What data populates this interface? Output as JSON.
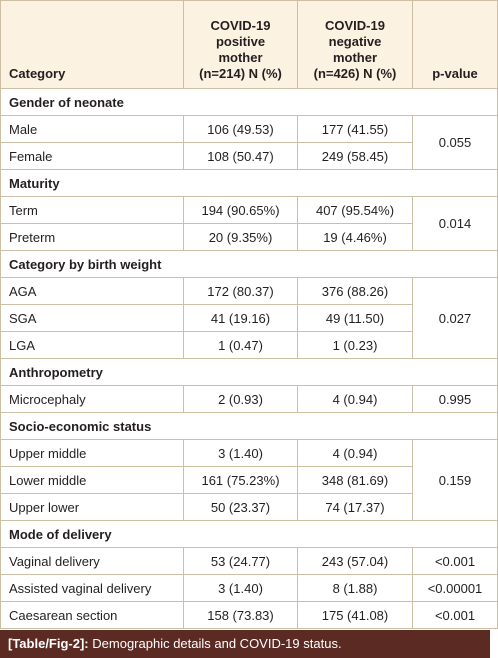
{
  "table": {
    "header": {
      "category": "Category",
      "positive": [
        "COVID-19",
        "positive",
        "mother",
        "(n=214) N (%)"
      ],
      "negative": [
        "COVID-19",
        "negative",
        "mother",
        "(n=426) N (%)"
      ],
      "p_value": "p-value"
    },
    "sections": [
      {
        "title": "Gender of neonate",
        "p_value": "0.055",
        "rows": [
          [
            "Male",
            "106 (49.53)",
            "177 (41.55)"
          ],
          [
            "Female",
            "108 (50.47)",
            "249 (58.45)"
          ]
        ]
      },
      {
        "title": "Maturity",
        "p_value": "0.014",
        "rows": [
          [
            "Term",
            "194 (90.65%)",
            "407 (95.54%)"
          ],
          [
            "Preterm",
            "20 (9.35%)",
            "19 (4.46%)"
          ]
        ]
      },
      {
        "title": "Category by birth weight",
        "p_value": "0.027",
        "rows": [
          [
            "AGA",
            "172 (80.37)",
            "376 (88.26)"
          ],
          [
            "SGA",
            "41 (19.16)",
            "49 (11.50)"
          ],
          [
            "LGA",
            "1 (0.47)",
            "1 (0.23)"
          ]
        ]
      },
      {
        "title": "Anthropometry",
        "p_value": "0.995",
        "rows": [
          [
            "Microcephaly",
            "2 (0.93)",
            "4 (0.94)"
          ]
        ]
      },
      {
        "title": "Socio-economic status",
        "p_value": "0.159",
        "rows": [
          [
            "Upper middle",
            "3 (1.40)",
            "4 (0.94)"
          ],
          [
            "Lower middle",
            "161 (75.23%)",
            "348 (81.69)"
          ],
          [
            "Upper lower",
            "50 (23.37)",
            "74 (17.37)"
          ]
        ]
      },
      {
        "title": "Mode of delivery",
        "rows": [
          [
            "Vaginal delivery",
            "53 (24.77)",
            "243 (57.04)",
            "<0.001"
          ],
          [
            "Assisted vaginal delivery",
            "3 (1.40)",
            "8 (1.88)",
            "<0.00001"
          ],
          [
            "Caesarean section",
            "158 (73.83)",
            "175 (41.08)",
            "<0.001"
          ]
        ]
      }
    ]
  },
  "caption": {
    "label": "[Table/Fig-2]:",
    "text": "Demographic details and COVID-19 status."
  }
}
